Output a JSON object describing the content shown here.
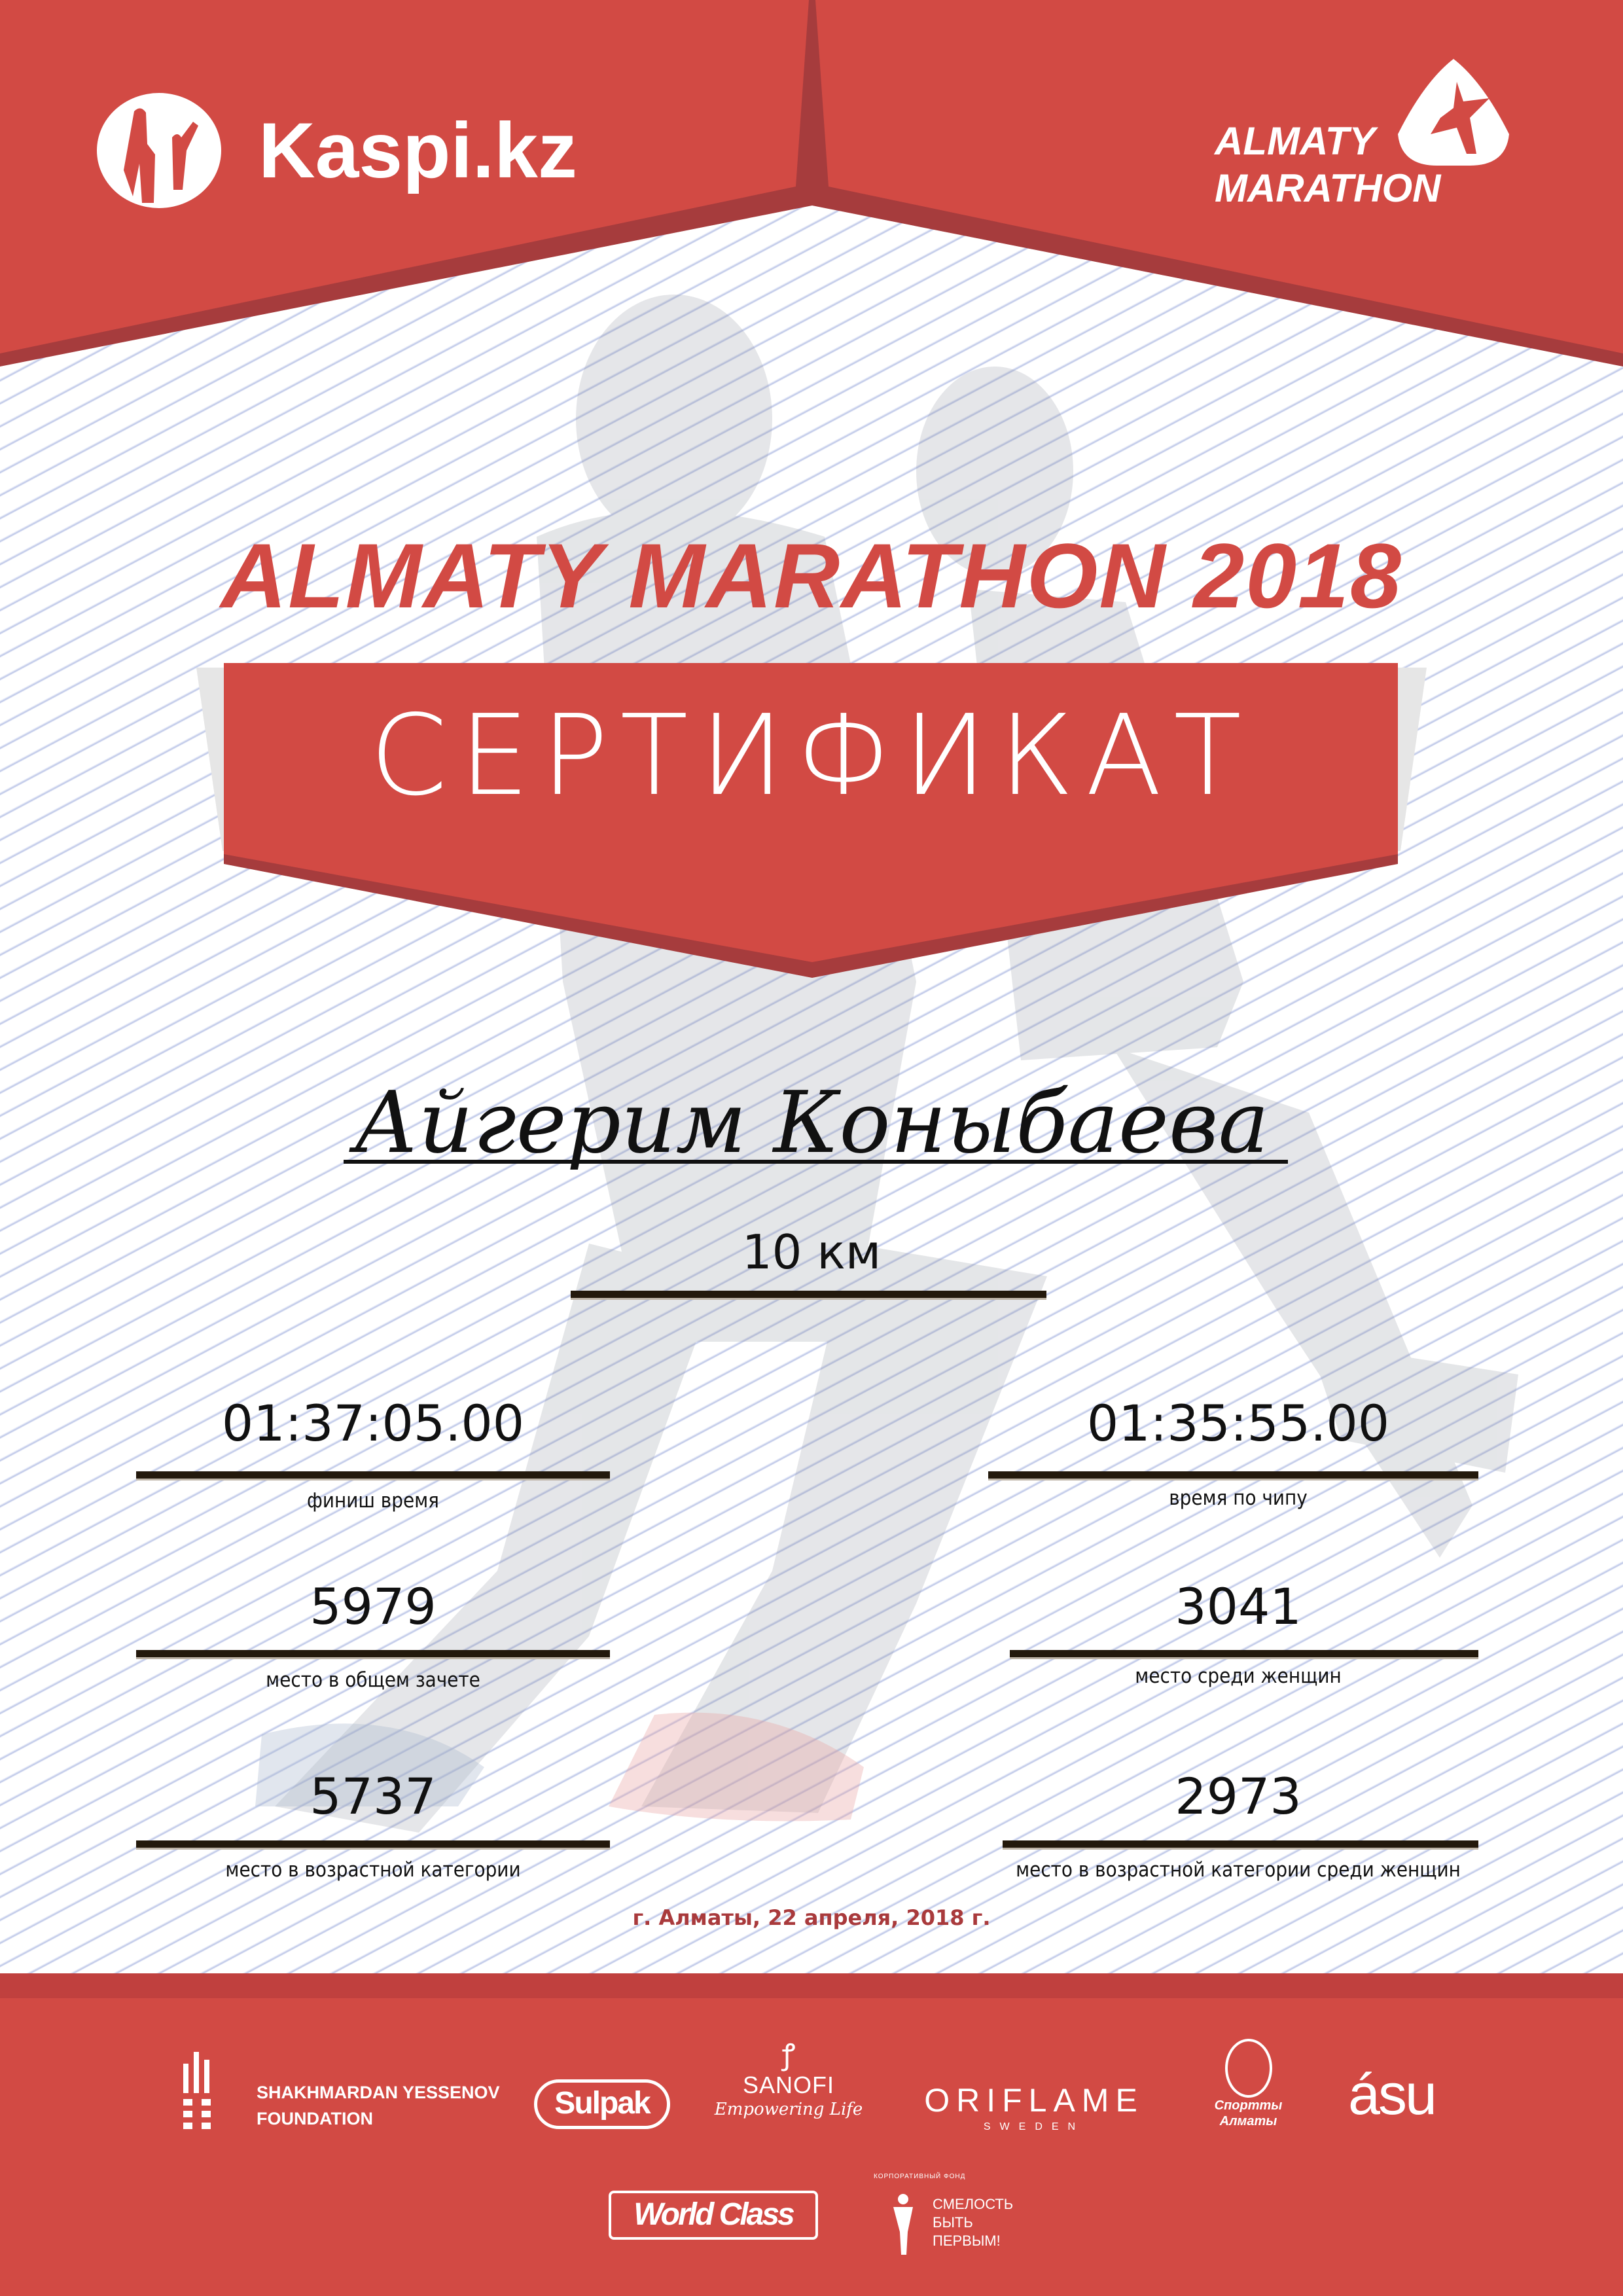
{
  "colors": {
    "brand_red": "#d24a44",
    "dark_red": "#a63c3d",
    "date_red": "#a93a3c",
    "line": "#23190c"
  },
  "header": {
    "left_logo": {
      "text": "Kaspi.kz",
      "icon": "kaspi-people-icon"
    },
    "right_logo": {
      "line1": "ALMATY",
      "line2": "MARATHON",
      "icon": "runner-icon"
    }
  },
  "title": "ALMATY MARATHON 2018",
  "banner": "СЕРТИФИКАТ",
  "participant": {
    "name": "Айгерим Коныбаева",
    "distance": "10 км"
  },
  "results": [
    {
      "value": "01:37:05.00",
      "label": "финиш время"
    },
    {
      "value": "01:35:55.00",
      "label": "время по чипу"
    },
    {
      "value": "5979",
      "label": "место в общем зачете"
    },
    {
      "value": "3041",
      "label": "место среди женщин"
    },
    {
      "value": "5737",
      "label": "место в возрастной категории"
    },
    {
      "value": "2973",
      "label": "место в возрастной категории среди женщин"
    }
  ],
  "date": "г. Алматы, 22 апреля, 2018 г.",
  "sponsors": {
    "yessenov": {
      "line1": "SHAKHMARDAN YESSENOV",
      "line2": "FOUNDATION"
    },
    "sulpak": "Sulpak",
    "sanofi": {
      "name": "SANOFI",
      "tagline": "Empowering Life"
    },
    "oriflame": {
      "name": "ORIFLAME",
      "sub": "SWEDEN"
    },
    "sport_almaty": {
      "line1": "Спортты",
      "line2": "Алматы"
    },
    "asu": "ásu",
    "worldclass": "World Class",
    "fund": {
      "arc": "КОРПОРАТИВНЫЙ ФОНД",
      "line1": "СМЕЛОСТЬ",
      "line2": "БЫТЬ",
      "line3": "ПЕРВЫМ!"
    }
  }
}
